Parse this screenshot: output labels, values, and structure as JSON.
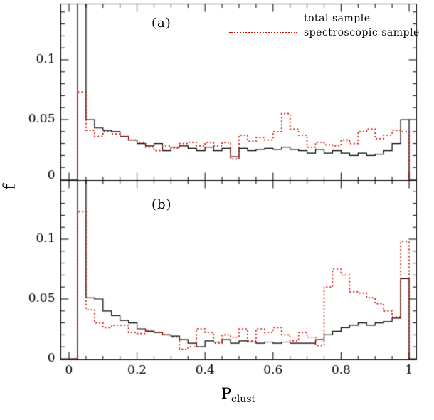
{
  "figure": {
    "ylabel": "f",
    "xlabel_base": "P",
    "xlabel_sub": "clust",
    "panels": [
      {
        "label": "(a)"
      },
      {
        "label": "(b)"
      }
    ],
    "legend": [
      {
        "label": "total sample"
      },
      {
        "label": "spectroscopic sample"
      }
    ],
    "colors": {
      "total": "#000000",
      "spectroscopic": "#cc1100",
      "frame": "#000000",
      "background": "#ffffff"
    }
  },
  "chart_data": {
    "type": "histogram-step",
    "title": "",
    "xlabel": "P_clust",
    "ylabel": "f",
    "bin_start": 0,
    "bin_width": 0.025,
    "n_bins": 40,
    "xlim": [
      -0.025,
      1.021
    ],
    "ylim": [
      0,
      0.146
    ],
    "xticks": [
      0,
      0.2,
      0.4,
      0.6,
      0.8,
      1
    ],
    "xtick_labels": [
      "0",
      "0.2",
      "0.4",
      "0.6",
      "0.8",
      "1"
    ],
    "xminor_step": 0.05,
    "yticks": [
      0,
      0.05,
      0.1
    ],
    "ytick_labels": [
      "0",
      "0.05",
      "0.1"
    ],
    "yminor_step": 0.01,
    "grid": false,
    "legend_position": "top-right-panel-a",
    "panels": [
      {
        "name": "(a)",
        "series": [
          {
            "name": "total sample",
            "color": "#000000",
            "line": "solid",
            "values": [
              0,
              0.2,
              0.05,
              0.043,
              0.041,
              0.04,
              0.036,
              0.033,
              0.03,
              0.028,
              0.03,
              0.024,
              0.027,
              0.028,
              0.026,
              0.024,
              0.027,
              0.024,
              0.026,
              0.019,
              0.026,
              0.024,
              0.025,
              0.026,
              0.025,
              0.027,
              0.025,
              0.024,
              0.022,
              0.025,
              0.022,
              0.024,
              0.022,
              0.02,
              0.022,
              0.02,
              0.021,
              0.024,
              0.03,
              0.05
            ]
          },
          {
            "name": "spectroscopic sample",
            "color": "#cc1100",
            "line": "dotted",
            "values": [
              0,
              0.073,
              0.041,
              0.036,
              0.04,
              0.038,
              0.036,
              0.033,
              0.031,
              0.027,
              0.024,
              0.028,
              0.026,
              0.03,
              0.031,
              0.028,
              0.031,
              0.028,
              0.031,
              0.017,
              0.037,
              0.032,
              0.035,
              0.033,
              0.04,
              0.055,
              0.042,
              0.037,
              0.027,
              0.031,
              0.029,
              0.028,
              0.033,
              0.03,
              0.04,
              0.042,
              0.034,
              0.037,
              0.041,
              0.04
            ]
          }
        ]
      },
      {
        "name": "(b)",
        "series": [
          {
            "name": "total sample",
            "color": "#000000",
            "line": "solid",
            "values": [
              0,
              0.2,
              0.051,
              0.05,
              0.04,
              0.036,
              0.032,
              0.03,
              0.025,
              0.023,
              0.022,
              0.02,
              0.019,
              0.016,
              0.013,
              0.01,
              0.015,
              0.014,
              0.016,
              0.013,
              0.015,
              0.014,
              0.013,
              0.014,
              0.013,
              0.014,
              0.013,
              0.013,
              0.013,
              0.016,
              0.02,
              0.023,
              0.026,
              0.028,
              0.03,
              0.028,
              0.03,
              0.031,
              0.034,
              0.067
            ]
          },
          {
            "name": "spectroscopic sample",
            "color": "#cc1100",
            "line": "dotted",
            "values": [
              0,
              0.123,
              0.041,
              0.03,
              0.026,
              0.028,
              0.028,
              0.022,
              0.021,
              0.024,
              0.022,
              0.02,
              0.018,
              0.008,
              0.01,
              0.025,
              0.022,
              0.013,
              0.02,
              0.018,
              0.025,
              0.015,
              0.025,
              0.022,
              0.026,
              0.02,
              0.015,
              0.022,
              0.018,
              0.011,
              0.06,
              0.075,
              0.07,
              0.056,
              0.055,
              0.051,
              0.046,
              0.04,
              0.035,
              0.098
            ]
          }
        ]
      }
    ]
  }
}
